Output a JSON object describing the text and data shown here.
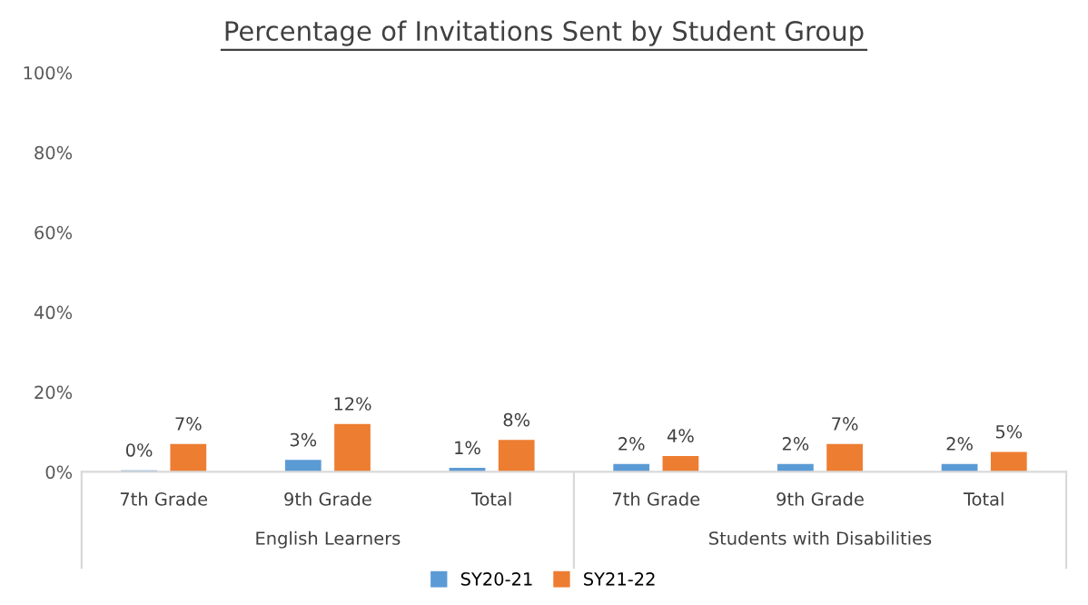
{
  "chart_data": {
    "type": "bar",
    "title": "Percentage of Invitations Sent by Student Group",
    "categories": [
      "7th Grade",
      "9th Grade",
      "Total",
      "7th Grade",
      "9th Grade",
      "Total"
    ],
    "series": [
      {
        "name": "SY20-21",
        "color": "#5b9bd5",
        "values": [
          0.4,
          3,
          1,
          2,
          2,
          2
        ],
        "value_labels": [
          "0%",
          "3%",
          "1%",
          "2%",
          "2%",
          "2%"
        ]
      },
      {
        "name": "SY21-22",
        "color": "#ed7d31",
        "values": [
          7,
          12,
          8,
          4,
          7,
          5
        ],
        "value_labels": [
          "7%",
          "12%",
          "8%",
          "4%",
          "7%",
          "5%"
        ]
      }
    ],
    "ylim": [
      0,
      100
    ],
    "yticks": [
      {
        "value": 0,
        "label": "0%"
      },
      {
        "value": 20,
        "label": "20%"
      },
      {
        "value": 40,
        "label": "40%"
      },
      {
        "value": 60,
        "label": "60%"
      },
      {
        "value": 80,
        "label": "80%"
      },
      {
        "value": 100,
        "label": "100%"
      }
    ],
    "annotations": [
      "English Learners",
      "Students with Disabilities"
    ],
    "grid": false,
    "legend": "bottom"
  }
}
